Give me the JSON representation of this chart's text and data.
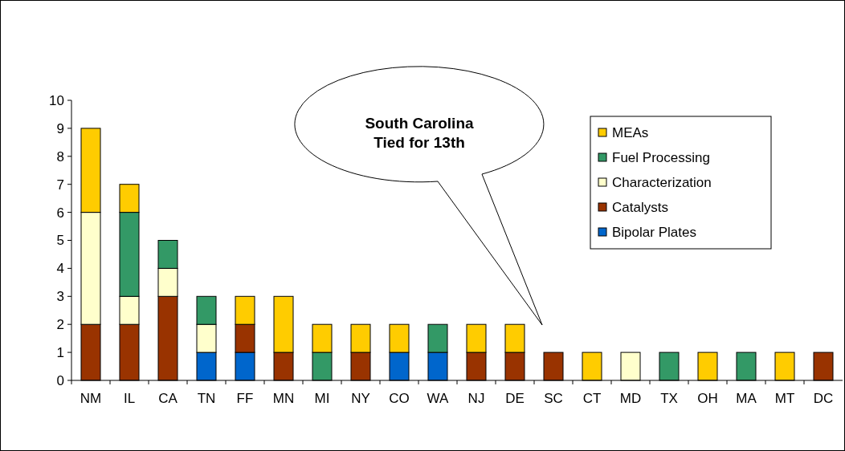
{
  "chart_data": {
    "type": "bar",
    "stacked": true,
    "categories": [
      "NM",
      "IL",
      "CA",
      "TN",
      "FF",
      "MN",
      "MI",
      "NY",
      "CO",
      "WA",
      "NJ",
      "DE",
      "SC",
      "CT",
      "MD",
      "TX",
      "OH",
      "MA",
      "MT",
      "DC"
    ],
    "series": [
      {
        "name": "Bipolar Plates",
        "color": "#0066cc",
        "values": [
          0,
          0,
          0,
          1,
          1,
          0,
          0,
          0,
          1,
          1,
          0,
          0,
          0,
          0,
          0,
          0,
          0,
          0,
          0,
          0
        ]
      },
      {
        "name": "Catalysts",
        "color": "#993300",
        "values": [
          2,
          2,
          3,
          0,
          1,
          1,
          0,
          1,
          0,
          0,
          1,
          1,
          1,
          0,
          0,
          0,
          0,
          0,
          0,
          1
        ]
      },
      {
        "name": "Characterization",
        "color": "#ffffcc",
        "values": [
          4,
          1,
          1,
          1,
          0,
          0,
          0,
          0,
          0,
          0,
          0,
          0,
          0,
          0,
          1,
          0,
          0,
          0,
          0,
          0
        ]
      },
      {
        "name": "Fuel Processing",
        "color": "#339966",
        "values": [
          0,
          3,
          1,
          1,
          0,
          0,
          1,
          0,
          0,
          1,
          0,
          0,
          0,
          0,
          0,
          1,
          0,
          1,
          0,
          0
        ]
      },
      {
        "name": "MEAs",
        "color": "#ffcc00",
        "values": [
          3,
          1,
          0,
          0,
          1,
          2,
          1,
          1,
          1,
          0,
          1,
          1,
          0,
          1,
          0,
          0,
          1,
          0,
          1,
          0
        ]
      }
    ],
    "ylim": [
      0,
      10
    ],
    "yticks": [
      0,
      1,
      2,
      3,
      4,
      5,
      6,
      7,
      8,
      9,
      10
    ],
    "grid": false,
    "legend": "right",
    "annotations": [
      "South Carolina Tied for 13th"
    ]
  }
}
